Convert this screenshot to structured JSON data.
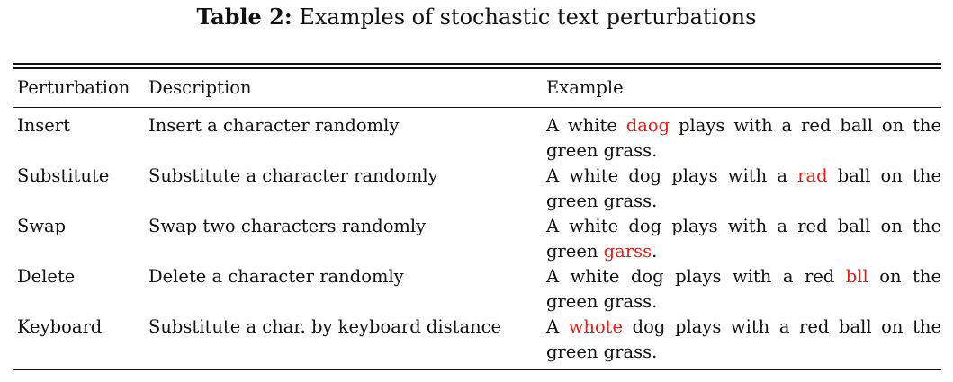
{
  "caption": {
    "label": "Table 2:",
    "text": "Examples of stochastic text perturbations"
  },
  "table": {
    "headers": [
      "Perturbation",
      "Description",
      "Example"
    ],
    "rows": [
      {
        "perturbation": "Insert",
        "description": "Insert a character randomly",
        "example": {
          "before": "A white ",
          "highlight": "daog",
          "after": " plays with a red ball on the green grass."
        }
      },
      {
        "perturbation": "Substitute",
        "description": "Substitute a character randomly",
        "example": {
          "before": "A white dog plays with a ",
          "highlight": "rad",
          "after": " ball on the green grass."
        }
      },
      {
        "perturbation": "Swap",
        "description": "Swap two characters randomly",
        "example": {
          "before": "A white dog plays with a red ball on the green ",
          "highlight": "garss",
          "after": "."
        }
      },
      {
        "perturbation": "Delete",
        "description": "Delete a character randomly",
        "example": {
          "before": "A white dog plays with a red ",
          "highlight": "bll",
          "after": " on the green grass."
        }
      },
      {
        "perturbation": "Keyboard",
        "description": "Substitute a char. by keyboard distance",
        "example": {
          "before": "A ",
          "highlight": "whote",
          "after": " dog plays with a red ball on the green grass."
        }
      }
    ],
    "highlight_color": "#e0201c"
  }
}
